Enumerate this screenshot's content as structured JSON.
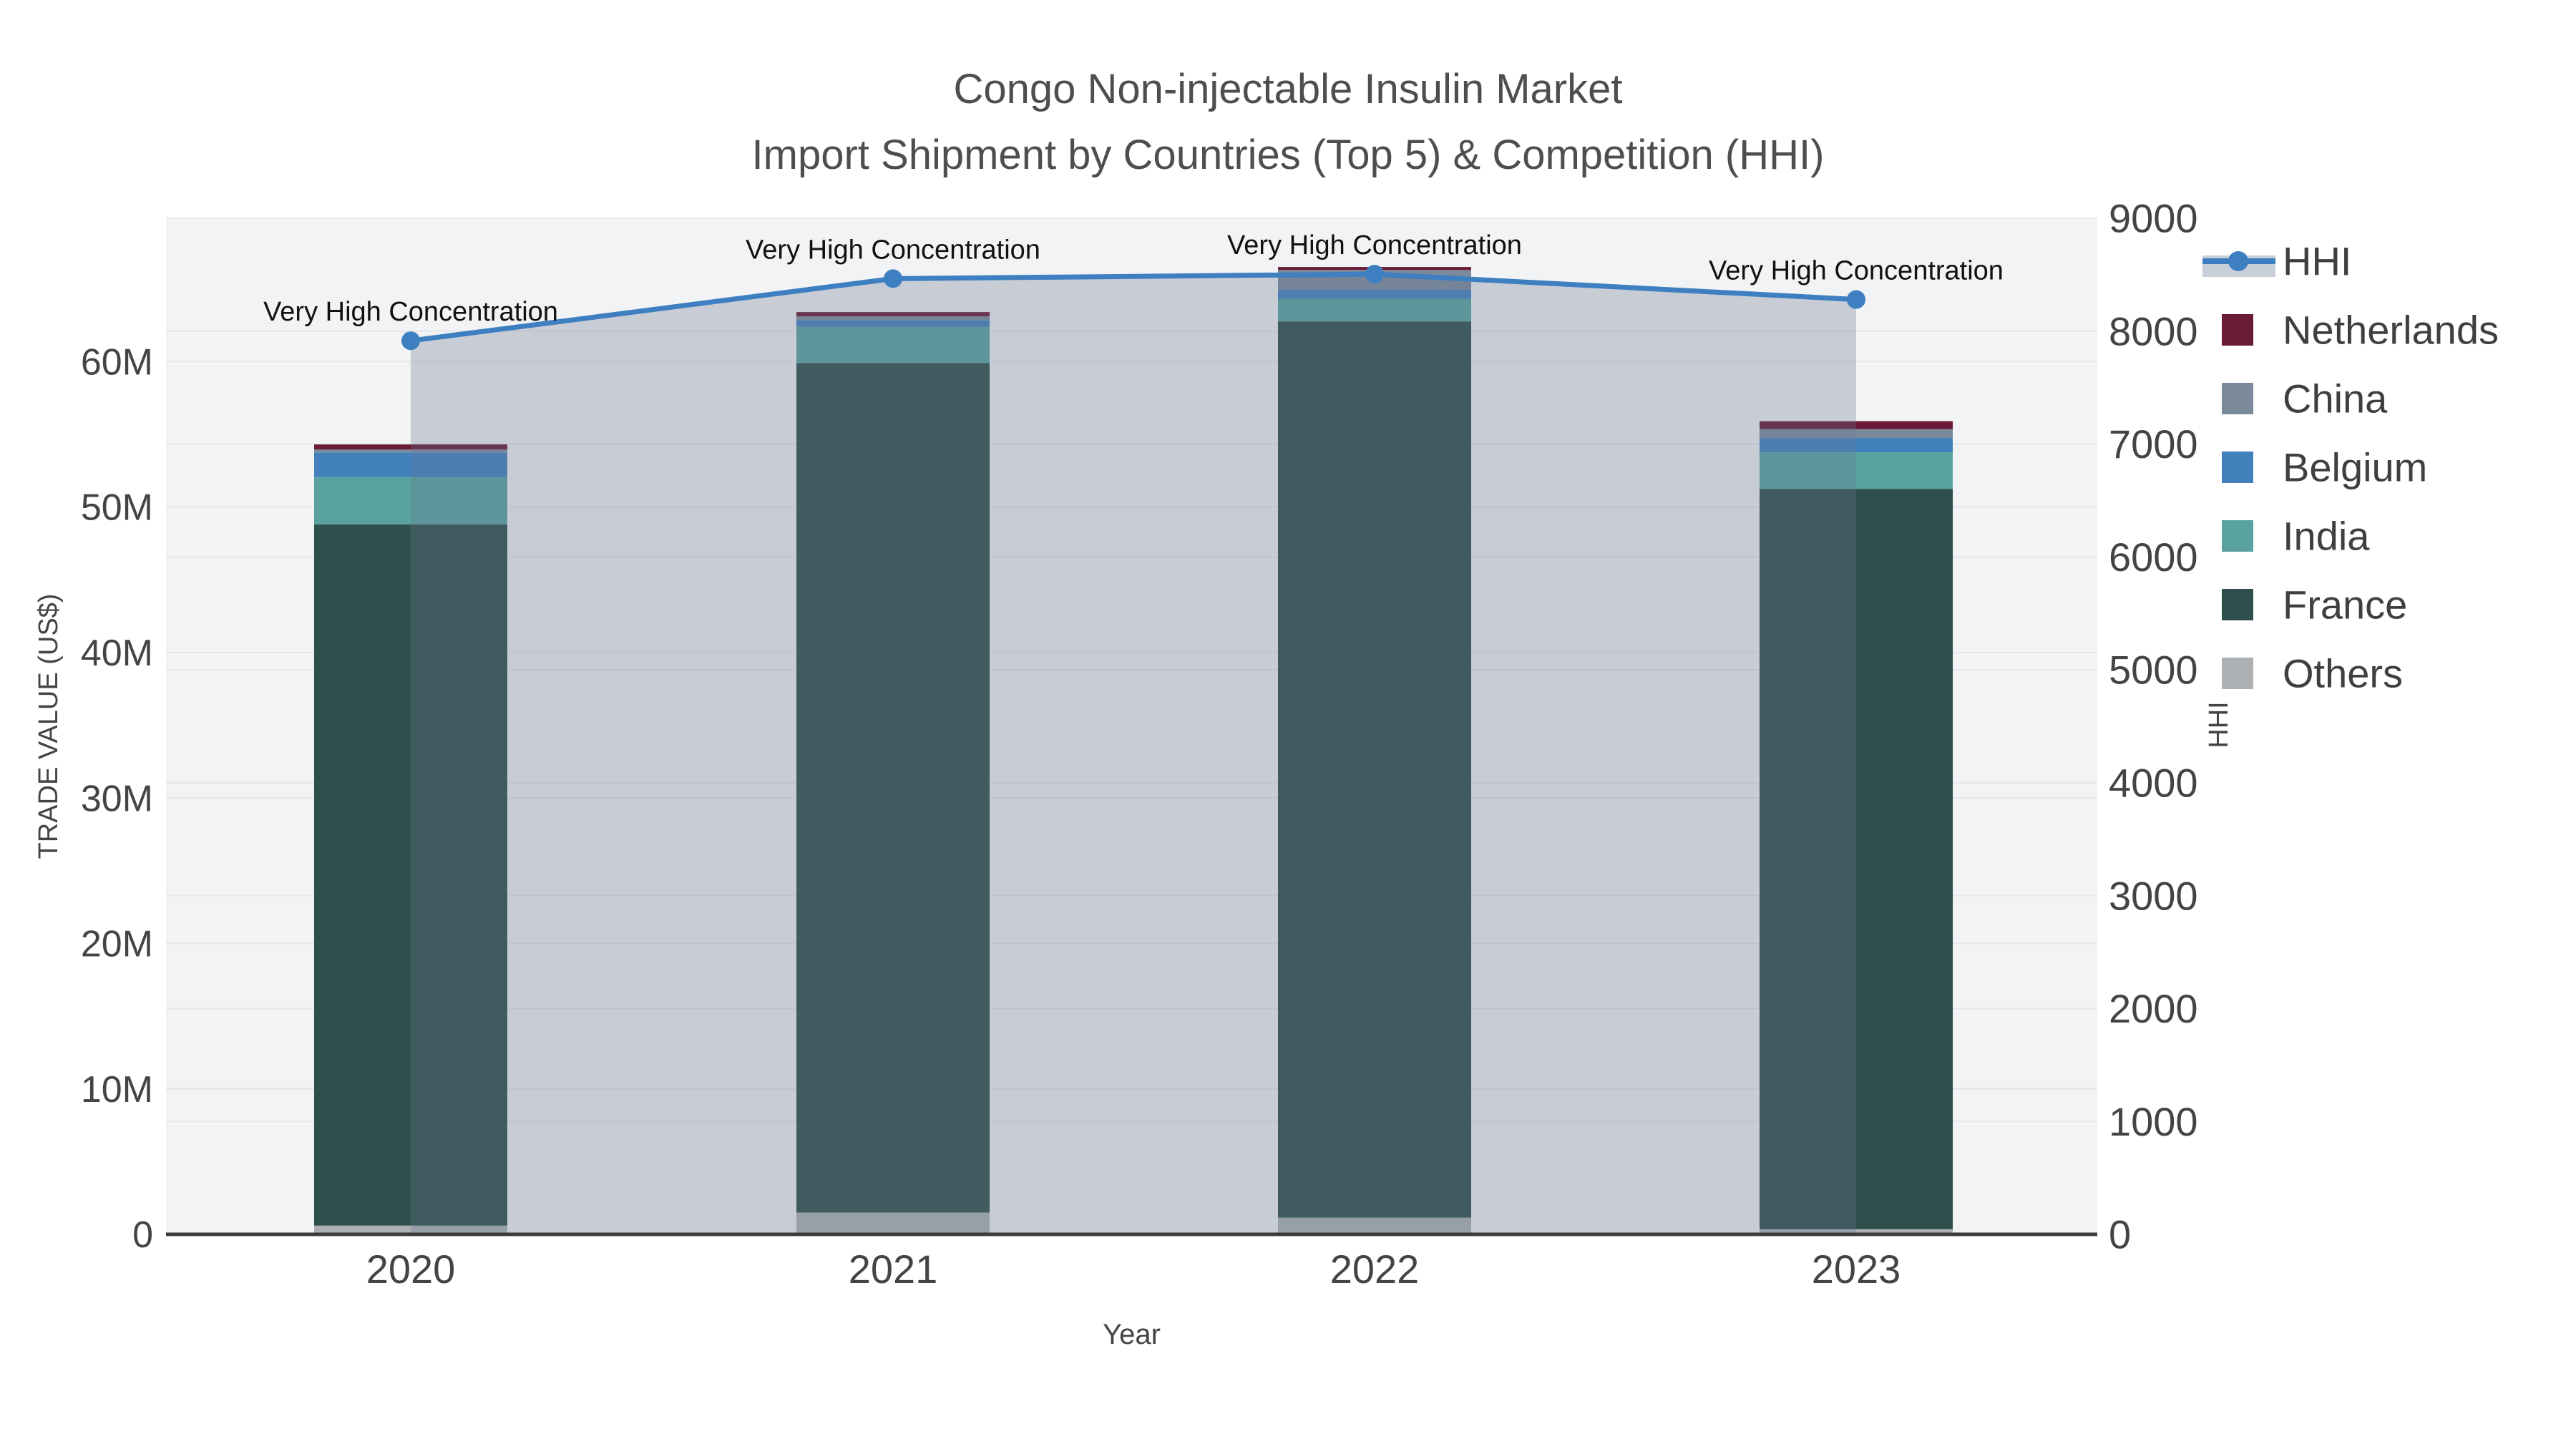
{
  "chart_data": {
    "type": "combo-stacked-bar-line",
    "title": "Congo Non-injectable Insulin Market",
    "subtitle": "Import Shipment by Countries (Top 5) & Competition (HHI)",
    "xlabel": "Year",
    "categories": [
      "2020",
      "2021",
      "2022",
      "2023"
    ],
    "left_axis": {
      "title": "TRADE VALUE (US$)",
      "tick_values_m": [
        0,
        10,
        20,
        30,
        40,
        50,
        60
      ],
      "tick_labels": [
        "0",
        "10M",
        "20M",
        "30M",
        "40M",
        "50M",
        "60M"
      ],
      "max_m": 69.85
    },
    "right_axis": {
      "title": "HHI",
      "tick_values": [
        0,
        1000,
        2000,
        3000,
        4000,
        5000,
        6000,
        7000,
        8000,
        9000
      ],
      "max": 9000
    },
    "series": [
      {
        "name": "Others",
        "color": "#adb0b3",
        "values_m": [
          0.6,
          1.5,
          1.15,
          0.35
        ]
      },
      {
        "name": "France",
        "color": "#2e4f4b",
        "values_m": [
          48.2,
          58.4,
          61.6,
          50.9
        ]
      },
      {
        "name": "India",
        "color": "#5aa2a0",
        "values_m": [
          3.25,
          2.5,
          1.55,
          2.5
        ]
      },
      {
        "name": "Belgium",
        "color": "#4381bd",
        "values_m": [
          1.7,
          0.45,
          0.65,
          1.0
        ]
      },
      {
        "name": "China",
        "color": "#7b8a9b",
        "values_m": [
          0.2,
          0.25,
          1.35,
          0.6
        ]
      },
      {
        "name": "Netherlands",
        "color": "#6b1a38",
        "values_m": [
          0.35,
          0.3,
          0.2,
          0.55
        ]
      }
    ],
    "hhi": {
      "name": "HHI",
      "color": "#3d7fc1",
      "area_color": "rgba(102,119,144,0.30)",
      "values": [
        7915,
        8465,
        8505,
        8280
      ]
    },
    "annotation_text": "Very High Concentration",
    "legend_order": [
      "HHI",
      "Netherlands",
      "China",
      "Belgium",
      "India",
      "France",
      "Others"
    ],
    "colors": {
      "plot_bg": "#f2f3f4",
      "gridline": "#e3e6ea",
      "axis_line": "#3b3b3b",
      "tick_text": "#444444",
      "annotation_text": "#111111",
      "legend_text": "#3f3f3f",
      "title_text": "#4e4e4e"
    }
  }
}
